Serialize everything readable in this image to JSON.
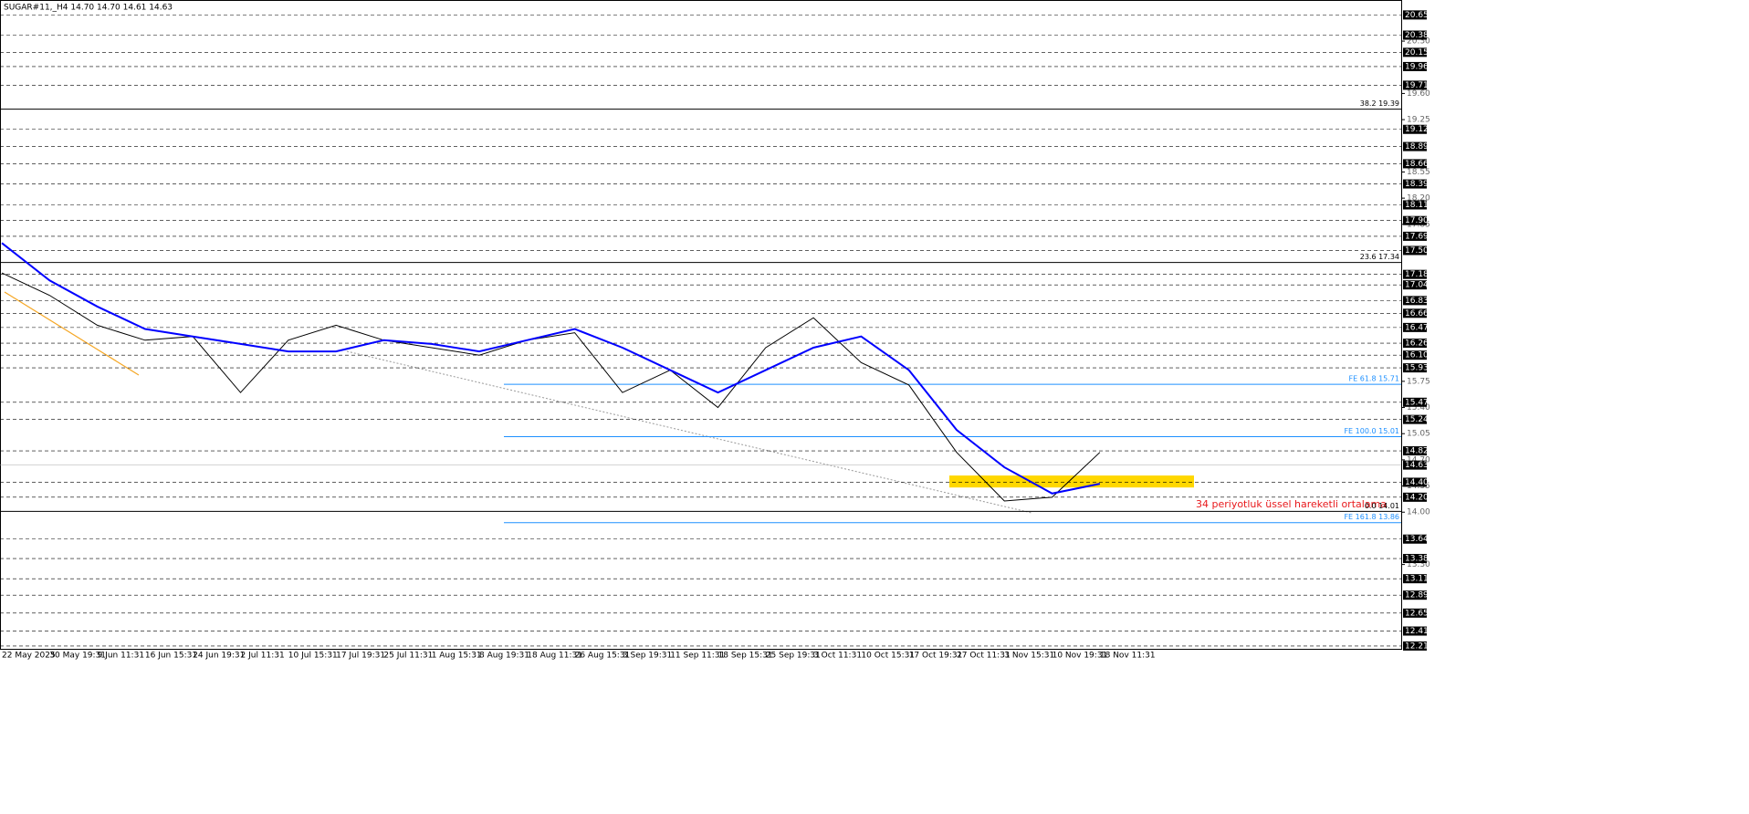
{
  "chart_data": {
    "type": "line",
    "title": "SUGAR#11,_H4 14.70 14.70 14.61 14.63",
    "categories": [
      "22 May 2025",
      "30 May 19:31",
      "9 Jun 11:31",
      "16 Jun 15:31",
      "24 Jun 19:31",
      "2 Jul 11:31",
      "10 Jul 15:31",
      "17 Jul 19:31",
      "25 Jul 11:31",
      "1 Aug 15:31",
      "8 Aug 19:31",
      "18 Aug 11:31",
      "26 Aug 15:31",
      "3 Sep 19:31",
      "11 Sep 11:31",
      "18 Sep 15:31",
      "25 Sep 19:31",
      "3 Oct 11:31",
      "10 Oct 15:31",
      "17 Oct 19:31",
      "27 Oct 11:31",
      "3 Nov 15:31",
      "10 Nov 19:31",
      "18 Nov 11:31"
    ],
    "series": [
      {
        "name": "SUGAR#11",
        "color": "#000000",
        "values": [
          17.2,
          16.9,
          16.5,
          16.3,
          16.35,
          15.6,
          16.3,
          16.5,
          16.3,
          16.2,
          16.1,
          16.3,
          16.4,
          15.6,
          15.9,
          15.4,
          16.2,
          16.6,
          16.0,
          15.7,
          14.8,
          14.15,
          14.2,
          14.8
        ]
      },
      {
        "name": "EMA 34",
        "color": "#0000ff",
        "values": [
          17.6,
          17.1,
          16.75,
          16.45,
          16.35,
          16.25,
          16.15,
          16.15,
          16.3,
          16.25,
          16.15,
          16.3,
          16.45,
          16.2,
          15.9,
          15.6,
          15.9,
          16.2,
          16.35,
          15.9,
          15.1,
          14.6,
          14.25,
          14.38
        ]
      }
    ],
    "ylim": [
      12.16,
      20.85
    ],
    "yticks": [
      {
        "value": 20.3,
        "label": "20.30"
      },
      {
        "value": 19.6,
        "label": "19.60"
      },
      19.25,
      18.55,
      {
        "value": 18.2,
        "label": "18.20"
      },
      17.85,
      15.75,
      {
        "value": 15.4,
        "label": "15.40"
      },
      15.05,
      {
        "value": 14.7,
        "label": "14.70"
      },
      14.35,
      {
        "value": 14,
        "label": "14.00"
      },
      {
        "value": 13.3,
        "label": "13.30"
      }
    ],
    "levels": [
      20.65,
      20.38,
      20.15,
      19.96,
      19.71,
      19.12,
      18.89,
      18.66,
      18.39,
      18.11,
      {
        "value": 17.9,
        "label": "17.90"
      },
      17.69,
      {
        "value": 17.5,
        "label": "17.50"
      },
      17.18,
      17.04,
      16.83,
      16.66,
      16.47,
      16.26,
      {
        "value": 16.1,
        "label": "16.10"
      },
      15.93,
      15.47,
      15.24,
      14.82,
      14.63,
      {
        "value": 14.4,
        "label": "14.40"
      },
      {
        "value": 14.2,
        "label": "14.20"
      },
      13.64,
      13.38,
      13.11,
      12.89,
      12.65,
      12.41,
      12.21
    ],
    "fibo": [
      {
        "label": "38.2 19.39",
        "value": 19.39
      },
      {
        "label": "23.6 17.34",
        "value": 17.34
      },
      {
        "label": "0.0 14.01",
        "value": 14.01
      }
    ],
    "expansion": [
      {
        "label": "FE 61.8 15.71",
        "value": 15.71
      },
      {
        "label": "FE 100.0 15.01",
        "value": 15.01
      },
      {
        "label": "FE 161.8 13.86",
        "value": 13.86
      }
    ],
    "zone": {
      "from": 14.33,
      "to": 14.49,
      "color": "#ffd700"
    },
    "annotation": "34 periyotluk üssel hareketli ortalama"
  }
}
